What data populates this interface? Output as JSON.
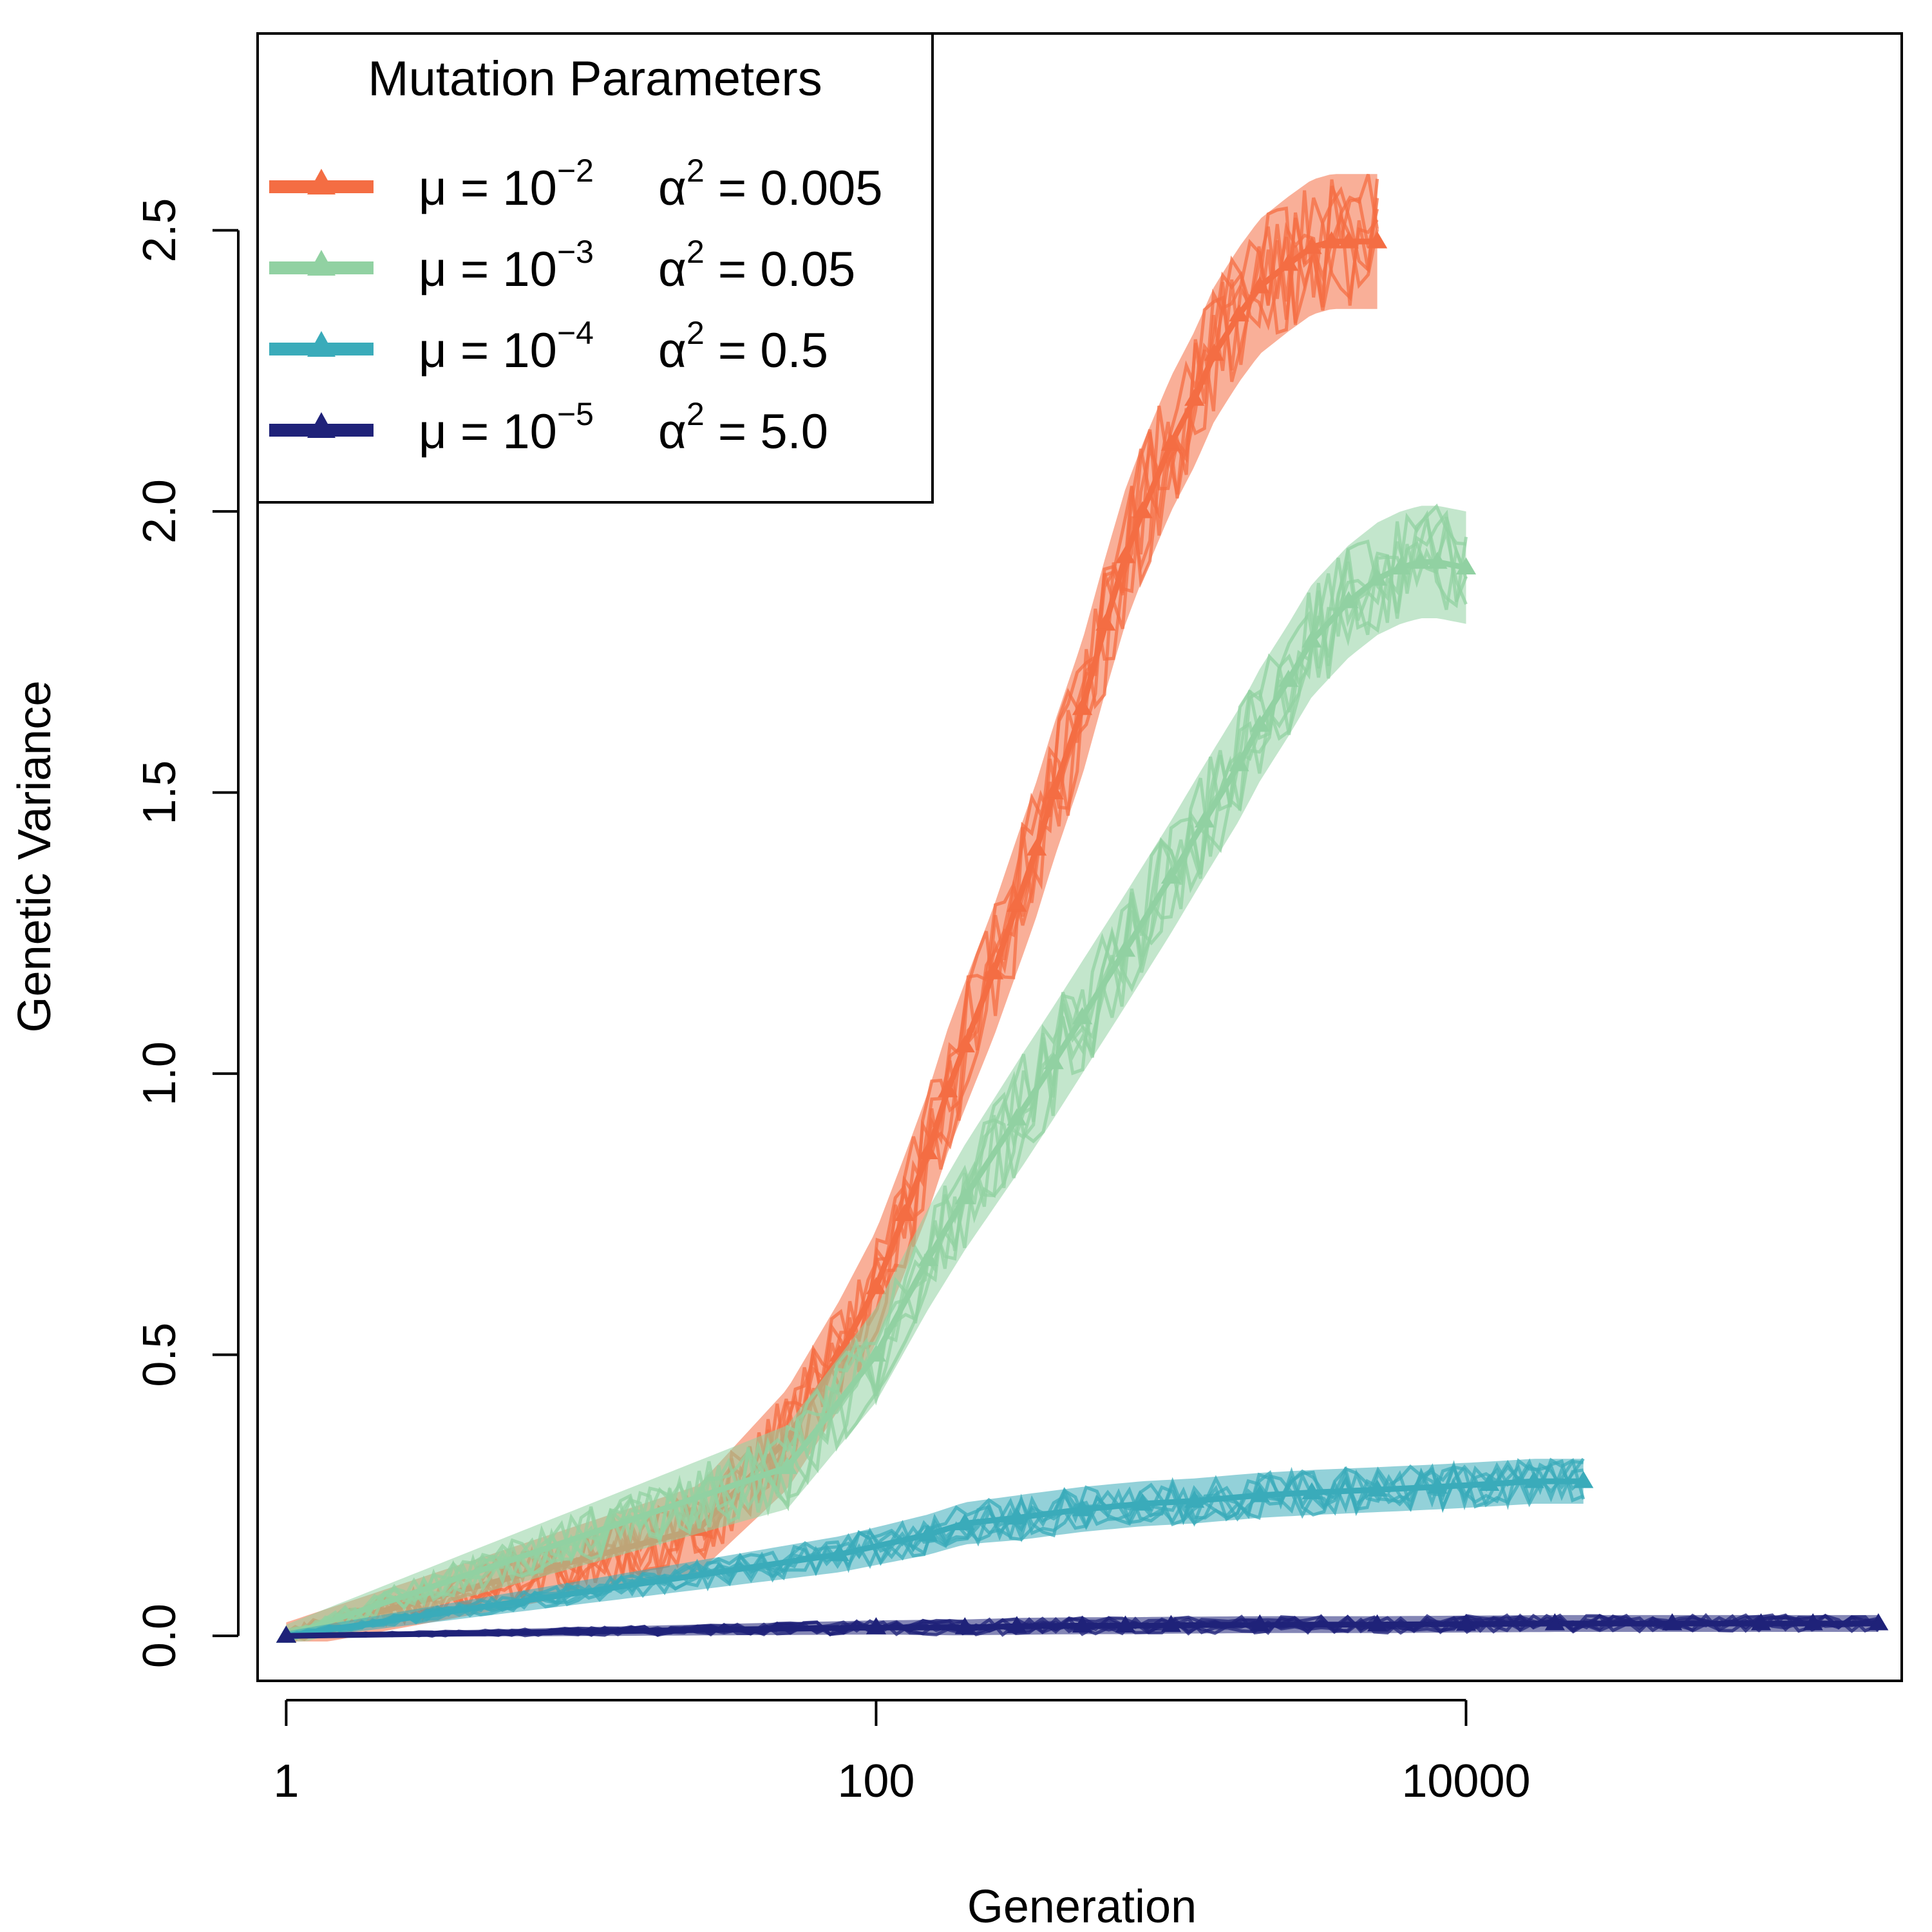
{
  "chart_data": {
    "type": "line",
    "xlabel": "Generation",
    "ylabel": "Genetic Variance",
    "x_scale": "log10",
    "xlim": [
      0.8,
      300000
    ],
    "ylim": [
      -0.08,
      2.85
    ],
    "x_ticks": [
      {
        "value": 1,
        "label": "1"
      },
      {
        "value": 100,
        "label": "100"
      },
      {
        "value": 10000,
        "label": "10000"
      }
    ],
    "y_ticks": [
      {
        "value": 0.0,
        "label": "0.0"
      },
      {
        "value": 0.5,
        "label": "0.5"
      },
      {
        "value": 1.0,
        "label": "1.0"
      },
      {
        "value": 1.5,
        "label": "1.5"
      },
      {
        "value": 2.0,
        "label": "2.0"
      },
      {
        "value": 2.5,
        "label": "2.5"
      }
    ],
    "grid": false,
    "legend": {
      "title": "Mutation Parameters",
      "position": "top-left",
      "entries": [
        {
          "mu_text": "μ = 10",
          "mu_exp": "−2",
          "alpha_text": "α",
          "alpha_exp": "2",
          "alpha_val": " = 0.005",
          "color": "#F46D43"
        },
        {
          "mu_text": "μ = 10",
          "mu_exp": "−3",
          "alpha_text": "α",
          "alpha_exp": "2",
          "alpha_val": " = 0.05",
          "color": "#91D1A2"
        },
        {
          "mu_text": "μ = 10",
          "mu_exp": "−4",
          "alpha_text": "α",
          "alpha_exp": "2",
          "alpha_val": " = 0.5",
          "color": "#3AABBA"
        },
        {
          "mu_text": "μ = 10",
          "mu_exp": "−5",
          "alpha_text": "α",
          "alpha_exp": "2",
          "alpha_val": " = 5.0",
          "color": "#1F2279"
        }
      ]
    },
    "series": [
      {
        "name": "μ = 10^−2, α^2 = 0.005",
        "color": "#F46D43",
        "x": [
          1,
          25,
          50,
          75,
          100,
          125,
          150,
          175,
          200,
          250,
          300,
          350,
          400,
          500,
          600,
          700,
          800,
          1000,
          1200,
          1400,
          1700,
          2000,
          2500,
          3000,
          3500,
          4000,
          5000
        ],
        "y": [
          0.0,
          0.19,
          0.35,
          0.5,
          0.62,
          0.75,
          0.86,
          0.97,
          1.05,
          1.18,
          1.3,
          1.4,
          1.5,
          1.65,
          1.8,
          1.92,
          2.0,
          2.12,
          2.2,
          2.28,
          2.35,
          2.4,
          2.44,
          2.47,
          2.48,
          2.48,
          2.48
        ],
        "band": 0.12
      },
      {
        "name": "μ = 10^−3, α^2 = 0.05",
        "color": "#91D1A2",
        "x": [
          1,
          50,
          100,
          150,
          200,
          300,
          400,
          500,
          700,
          1000,
          1300,
          1700,
          2000,
          2500,
          3000,
          4000,
          5000,
          6000,
          7000,
          8000,
          10000
        ],
        "y": [
          0.0,
          0.3,
          0.5,
          0.67,
          0.78,
          0.92,
          1.02,
          1.1,
          1.22,
          1.35,
          1.45,
          1.55,
          1.62,
          1.7,
          1.77,
          1.84,
          1.88,
          1.9,
          1.91,
          1.91,
          1.9
        ],
        "band": 0.1
      },
      {
        "name": "μ = 10^−4, α^2 = 0.5",
        "color": "#3AABBA",
        "x": [
          1,
          75,
          150,
          200,
          300,
          500,
          800,
          1200,
          2000,
          3000,
          5000,
          8000,
          12000,
          17000,
          25000
        ],
        "y": [
          0.0,
          0.145,
          0.18,
          0.2,
          0.21,
          0.225,
          0.235,
          0.24,
          0.25,
          0.255,
          0.26,
          0.265,
          0.27,
          0.275,
          0.275
        ],
        "band": 0.04
      },
      {
        "name": "μ = 10^−5, α^2 = 5.0",
        "color": "#1F2279",
        "x": [
          1,
          100,
          200,
          300,
          500,
          700,
          1000,
          2000,
          5000,
          10000,
          20000,
          50000,
          100000,
          150000,
          250000
        ],
        "y": [
          0.0,
          0.015,
          0.015,
          0.017,
          0.018,
          0.018,
          0.019,
          0.02,
          0.02,
          0.021,
          0.022,
          0.022,
          0.022,
          0.022,
          0.022
        ],
        "band": 0.015
      }
    ]
  }
}
